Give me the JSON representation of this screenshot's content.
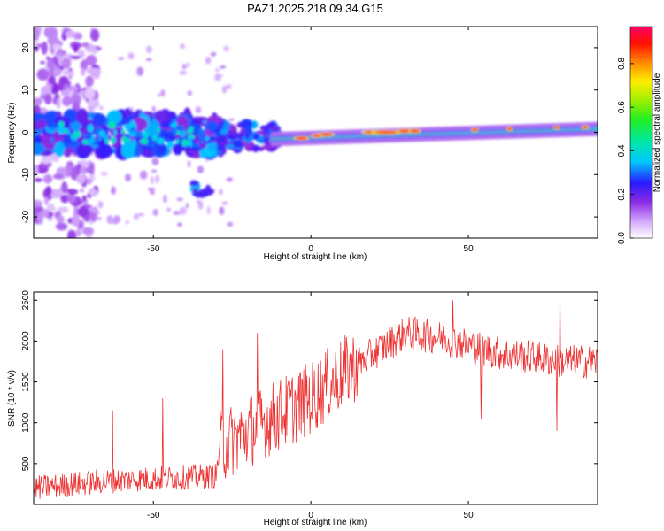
{
  "title": "PAZ1.2025.218.09.34.G15",
  "chart_data": [
    {
      "type": "heatmap",
      "xlabel": "Height of straight line (km)",
      "ylabel": "Frequency (Hz)",
      "xlim": [
        -88,
        91
      ],
      "ylim": [
        -25,
        25
      ],
      "xticks": [
        -50,
        0,
        50
      ],
      "yticks": [
        20,
        10,
        0,
        -10,
        -20
      ],
      "colorbar": {
        "label": "Normalized spectral amplitude",
        "range": [
          0,
          0.97
        ],
        "ticks": [
          "0.0",
          "0.2",
          "0.4",
          "0.6",
          "0.8"
        ],
        "colormap": "rainbow (white-violet-blue-cyan-green-yellow-red-magenta)"
      },
      "features": [
        {
          "desc": "scattered noise band",
          "x_range": [
            -88,
            -70
          ],
          "freq_range": [
            -25,
            25
          ],
          "amplitude": 0.1
        },
        {
          "desc": "broad blob",
          "x_range": [
            -88,
            -30
          ],
          "freq_range": [
            -6,
            5
          ],
          "amplitude": 0.3
        },
        {
          "desc": "low blob",
          "x_range": [
            -38,
            -32
          ],
          "freq_range": [
            -15,
            -12
          ],
          "amplitude": 0.25
        },
        {
          "desc": "narrow line",
          "x_range": [
            -30,
            91
          ],
          "freq_center": [
            -2,
            1
          ],
          "amplitude": 0.45
        },
        {
          "desc": "strong segments",
          "x_range": [
            -10,
            35
          ],
          "freq_center": 0,
          "amplitude": 0.9
        }
      ]
    },
    {
      "type": "line",
      "xlabel": "Height of straight line (km)",
      "ylabel": "SNR (10 * v/v)",
      "xlim": [
        -88,
        91
      ],
      "ylim": [
        0,
        2600
      ],
      "xticks": [
        -50,
        0,
        50
      ],
      "yticks": [
        500,
        1000,
        1500,
        2000,
        2500
      ],
      "color": "#ee3333",
      "trend": {
        "x": [
          -88,
          -60,
          -30,
          -29,
          -20,
          -10,
          0,
          10,
          20,
          30,
          40,
          50,
          60,
          70,
          80,
          91
        ],
        "y": [
          200,
          300,
          350,
          700,
          900,
          1100,
          1300,
          1600,
          1850,
          2100,
          2050,
          1950,
          1850,
          1800,
          1750,
          1750
        ]
      },
      "spikes": [
        {
          "x": -63,
          "y": 1150
        },
        {
          "x": -47,
          "y": 1300
        },
        {
          "x": -28,
          "y": 1900
        },
        {
          "x": -17,
          "y": 2100
        },
        {
          "x": 45,
          "y": 2500
        },
        {
          "x": 54,
          "y": 1050
        },
        {
          "x": 78,
          "y": 900
        },
        {
          "x": 79,
          "y": 2600
        }
      ]
    }
  ]
}
